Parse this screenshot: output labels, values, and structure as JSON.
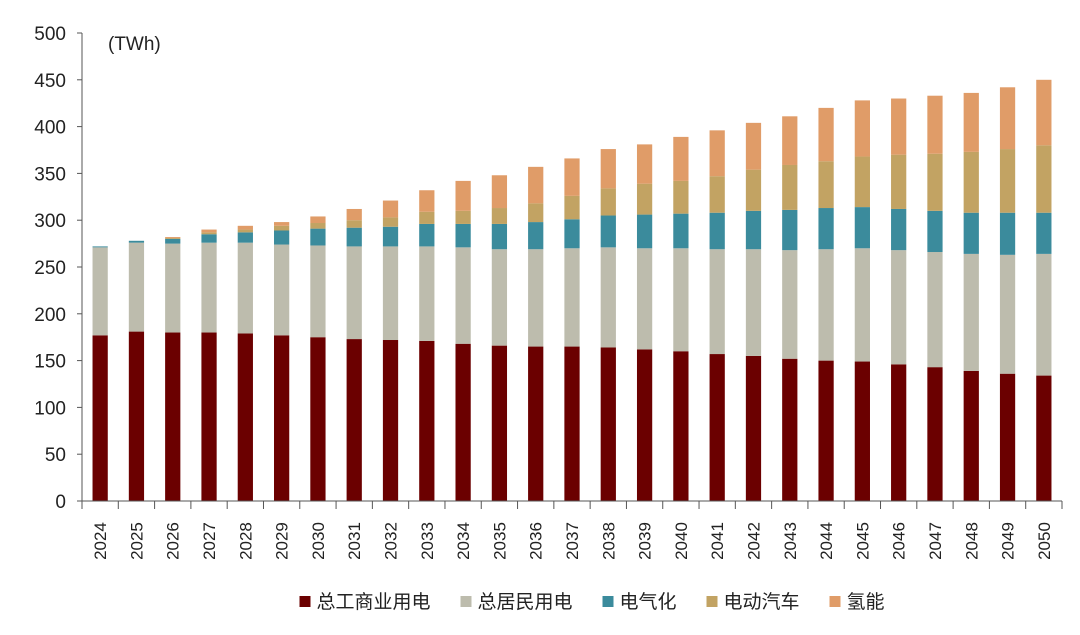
{
  "chart_data": {
    "type": "bar",
    "stacked": true,
    "unit_label": "(TWh)",
    "ylim": [
      0,
      500
    ],
    "yticks": [
      0,
      50,
      100,
      150,
      200,
      250,
      300,
      350,
      400,
      450,
      500
    ],
    "categories": [
      "2024",
      "2025",
      "2026",
      "2027",
      "2028",
      "2029",
      "2030",
      "2031",
      "2032",
      "2033",
      "2034",
      "2035",
      "2036",
      "2037",
      "2038",
      "2039",
      "2040",
      "2041",
      "2042",
      "2043",
      "2044",
      "2045",
      "2046",
      "2047",
      "2048",
      "2049",
      "2050"
    ],
    "legend_position": "bottom",
    "series": [
      {
        "name": "总工商业用电",
        "color": "#6b0000",
        "values": [
          177,
          181,
          180,
          180,
          179,
          177,
          175,
          173,
          172,
          171,
          168,
          166,
          165,
          165,
          164,
          162,
          160,
          157,
          155,
          152,
          150,
          149,
          146,
          143,
          139,
          136,
          134
        ]
      },
      {
        "name": "总居民用电",
        "color": "#bdbcad",
        "values": [
          94,
          95,
          95,
          96,
          97,
          97,
          98,
          99,
          100,
          101,
          103,
          103,
          104,
          105,
          107,
          108,
          110,
          112,
          114,
          116,
          119,
          121,
          122,
          123,
          125,
          127,
          130
        ]
      },
      {
        "name": "电气化",
        "color": "#3b8b9c",
        "values": [
          1,
          2,
          5,
          9,
          11,
          15,
          18,
          20,
          21,
          24,
          25,
          27,
          29,
          31,
          34,
          36,
          37,
          39,
          41,
          43,
          44,
          44,
          44,
          44,
          44,
          45,
          44
        ]
      },
      {
        "name": "电动汽车",
        "color": "#c2a363",
        "values": [
          0,
          0,
          1,
          2,
          3,
          5,
          6,
          8,
          10,
          13,
          14,
          17,
          20,
          25,
          29,
          33,
          35,
          39,
          44,
          48,
          50,
          54,
          58,
          61,
          65,
          68,
          72
        ]
      },
      {
        "name": "氢能",
        "color": "#e09c68",
        "values": [
          0,
          0,
          1,
          3,
          4,
          4,
          7,
          12,
          18,
          23,
          32,
          35,
          39,
          40,
          42,
          42,
          47,
          49,
          50,
          52,
          57,
          60,
          60,
          62,
          63,
          66,
          70
        ]
      }
    ]
  }
}
